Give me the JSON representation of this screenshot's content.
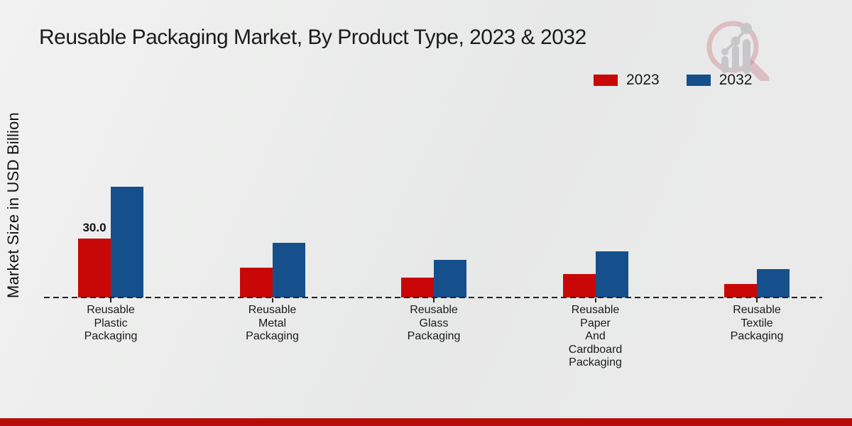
{
  "chart_data": {
    "type": "bar",
    "title": "Reusable Packaging Market, By Product Type, 2023 & 2032",
    "ylabel": "Market Size in USD Billion",
    "xlabel": "",
    "units": "USD Billion",
    "categories": [
      "Reusable Plastic Packaging",
      "Reusable Metal Packaging",
      "Reusable Glass Packaging",
      "Reusable Paper And Cardboard Packaging",
      "Reusable Textile Packaging"
    ],
    "category_label_lines": [
      [
        "Reusable",
        "Plastic",
        "Packaging"
      ],
      [
        "Reusable",
        "Metal",
        "Packaging"
      ],
      [
        "Reusable",
        "Glass",
        "Packaging"
      ],
      [
        "Reusable",
        "Paper",
        "And",
        "Cardboard",
        "Packaging"
      ],
      [
        "Reusable",
        "Textile",
        "Packaging"
      ]
    ],
    "series": [
      {
        "name": "2023",
        "color": "#c90707",
        "values": [
          30.0,
          15.0,
          10.0,
          12.0,
          7.0
        ]
      },
      {
        "name": "2032",
        "color": "#15508c",
        "values": [
          56.5,
          28.0,
          19.0,
          23.5,
          14.5
        ]
      }
    ],
    "value_labels": [
      {
        "series_index": 0,
        "category_index": 0,
        "text": "30.0"
      }
    ],
    "ylim": [
      0,
      60
    ],
    "grid": false,
    "legend_position": "upper-right",
    "baseline_style": "dashed"
  },
  "branding": {
    "logo_icon": "magnifier-bar-chart-watermark",
    "logo_ring_color": "#d9a9ae",
    "logo_bar_color": "#c7c7c9"
  },
  "footer": {
    "accent_color": "#b70d09"
  }
}
